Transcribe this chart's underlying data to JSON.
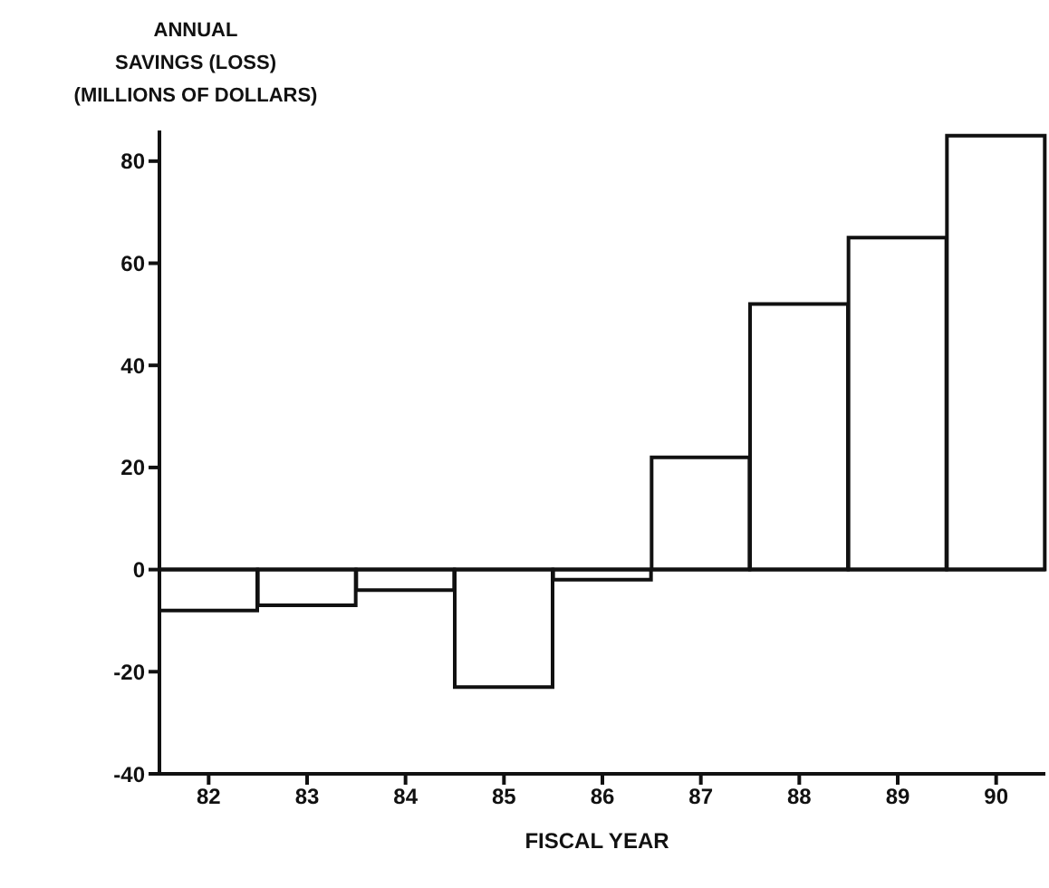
{
  "chart_data": {
    "type": "bar",
    "ylabel": "ANNUAL\nSAVINGS (LOSS)\n(MILLIONS OF DOLLARS)",
    "xlabel": "FISCAL YEAR",
    "categories": [
      "82",
      "83",
      "84",
      "85",
      "86",
      "87",
      "88",
      "89",
      "90"
    ],
    "values": [
      -8,
      -7,
      -4,
      -23,
      -2,
      22,
      52,
      65,
      85
    ],
    "color": "#ffffff",
    "ylim": [
      -40,
      86
    ],
    "yticks": [
      -40,
      -20,
      0,
      20,
      40,
      60,
      80
    ],
    "ref_lines": [
      {
        "axis": "y",
        "value": 0,
        "color": "#111111"
      }
    ],
    "grid": false
  }
}
